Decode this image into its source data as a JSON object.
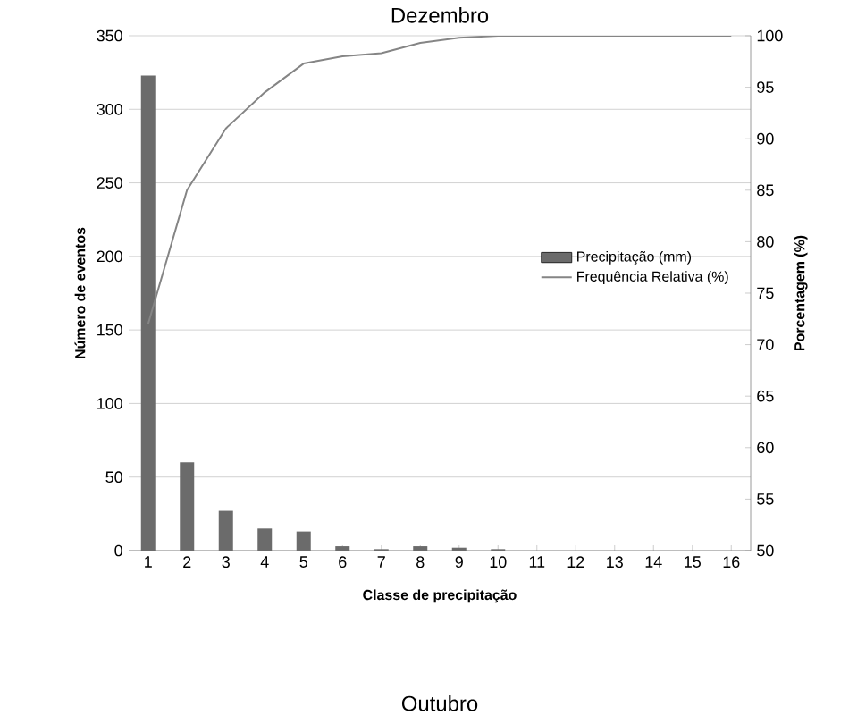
{
  "chart_data": {
    "type": "bar",
    "title": "Dezembro",
    "categories": [
      "1",
      "2",
      "3",
      "4",
      "5",
      "6",
      "7",
      "8",
      "9",
      "10",
      "11",
      "12",
      "13",
      "14",
      "15",
      "16"
    ],
    "series": [
      {
        "name": "Precipitação (mm)",
        "color": "#6b6b6b",
        "values": [
          323,
          60,
          27,
          15,
          13,
          3,
          1,
          3,
          2,
          1,
          0,
          0,
          0,
          0,
          0,
          0
        ]
      },
      {
        "name": "Frequência Relativa (%)",
        "type": "line",
        "axis": "y2",
        "color": "#858585",
        "values": [
          72,
          85,
          91,
          94.5,
          97.3,
          98,
          98.3,
          99.3,
          99.8,
          100,
          100,
          100,
          100,
          100,
          100,
          100
        ]
      }
    ],
    "xlabel": "Classe de precipitação",
    "ylabel": "Número de eventos",
    "y2label": "Porcentagem (%)",
    "ylim": [
      0,
      350
    ],
    "yticks": [
      0,
      50,
      100,
      150,
      200,
      250,
      300,
      350
    ],
    "y2lim": [
      50,
      100
    ],
    "y2ticks": [
      50,
      55,
      60,
      65,
      70,
      75,
      80,
      85,
      90,
      95,
      100
    ],
    "grid": "y",
    "legend": "right",
    "annotations": [
      "Outubro"
    ]
  }
}
